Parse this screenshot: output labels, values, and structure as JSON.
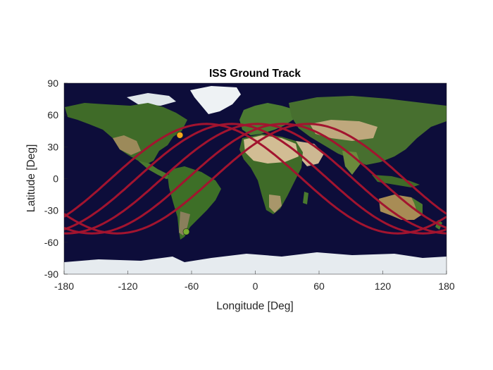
{
  "chart_data": {
    "type": "line",
    "title": "ISS Ground Track",
    "xlabel": "Longitude [Deg]",
    "ylabel": "Latitude [Deg]",
    "xlim": [
      -180,
      180
    ],
    "ylim": [
      -90,
      90
    ],
    "xticks": [
      -180,
      -120,
      -60,
      0,
      60,
      120,
      180
    ],
    "yticks": [
      90,
      60,
      30,
      0,
      -30,
      -60,
      -90
    ],
    "background": "world-map-satellite",
    "grid": false,
    "track": {
      "color": "#a2142f",
      "inclination_deg": 51.6,
      "ascending_node_longitudes": [
        -40,
        -64,
        -88,
        -112,
        -136
      ]
    },
    "markers": [
      {
        "role": "start",
        "lon": -71,
        "lat": 41,
        "color": "#f4a81d"
      },
      {
        "role": "end",
        "lon": -65,
        "lat": -50,
        "color": "#77ac30"
      }
    ],
    "map_colors": {
      "ocean": "#0d0d3a",
      "vegetation": "#3f6b28",
      "desert": "#cdb892",
      "ice": "#e6ebef"
    }
  }
}
